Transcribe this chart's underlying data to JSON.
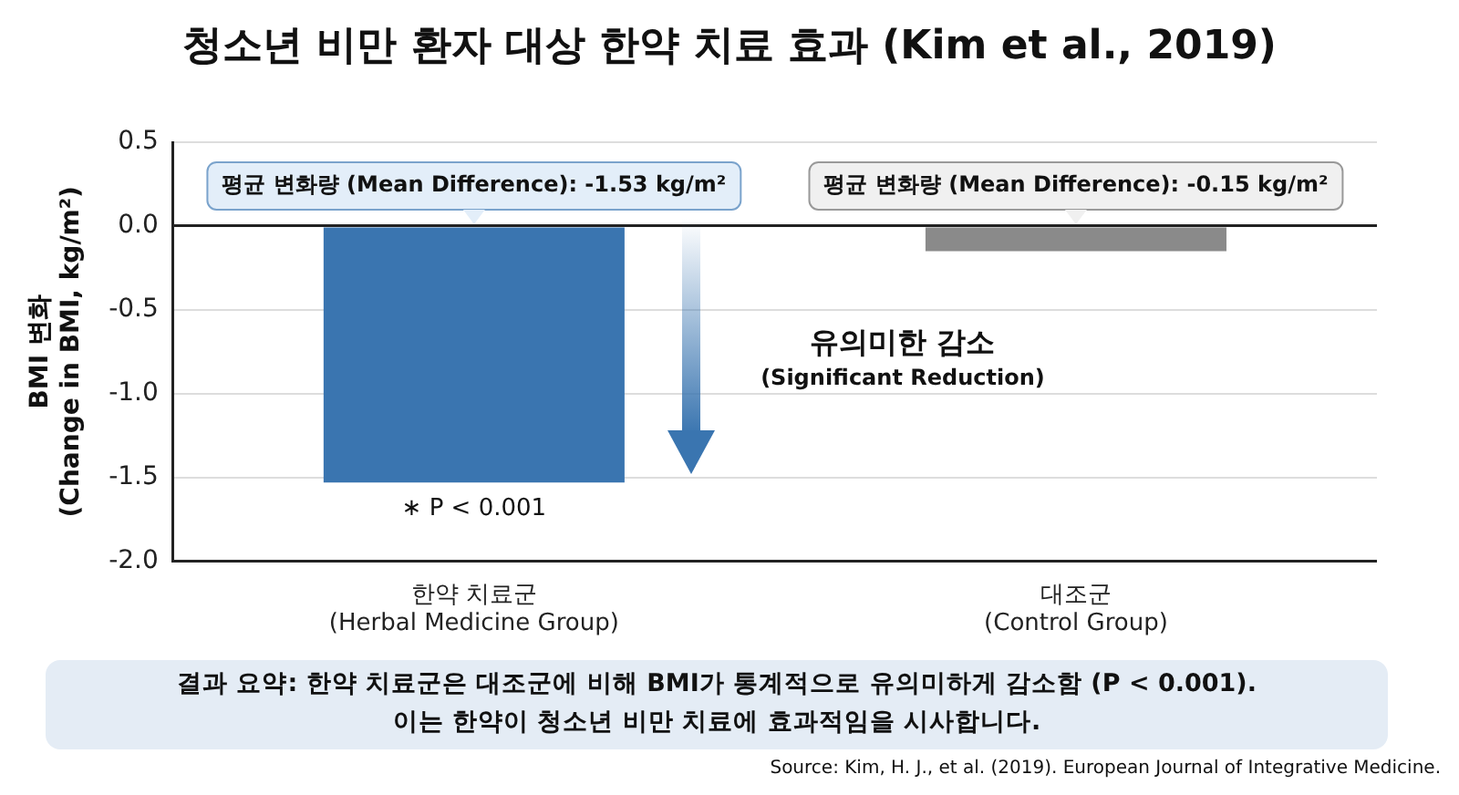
{
  "chart_data": {
    "type": "bar",
    "title": "청소년 비만 환자 대상 한약 치료 효과 (Kim et al., 2019)",
    "ylabel": "BMI 변화\n(Change in BMI, kg/m²)",
    "categories": [
      "한약 치료군\n(Herbal Medicine Group)",
      "대조군\n(Control Group)"
    ],
    "values": [
      -1.53,
      -0.15
    ],
    "colors": [
      "#3a75b0",
      "#8a8a8a"
    ],
    "ylim": [
      -2.0,
      0.5
    ],
    "yticks": [
      {
        "value": 0.5,
        "label": "0.5"
      },
      {
        "value": 0,
        "label": "0.0"
      },
      {
        "value": -0.5,
        "label": "-0.5"
      },
      {
        "value": -1,
        "label": "-1.0"
      },
      {
        "value": -1.5,
        "label": "-1.5"
      },
      {
        "value": -2,
        "label": "-2.0"
      }
    ],
    "grid": "y",
    "legend": false,
    "annotations": [
      {
        "text": "평균 변화량 (Mean Difference): -1.53 kg/m²",
        "x": "한약 치료군\n(Herbal Medicine Group)",
        "y": 0
      },
      {
        "text": "평균 변화량 (Mean Difference): -0.15 kg/m²",
        "x": "대조군\n(Control Group)",
        "y": 0
      },
      {
        "text": "∗ P < 0.001",
        "x": "한약 치료군\n(Herbal Medicine Group)",
        "y": -1.53
      },
      "유의미한 감소\n(Significant Reduction)",
      "결과 요약: 한약 치료군은 대조군에 비해 BMI가 통계적으로 유의미하게 감소함 (P < 0.001).\n이는 한약이 청소년 비만 치료에 효과적임을 시사합니다.",
      "Source: Kim, H. J., et al. (2019). European Journal of Integrative Medicine."
    ]
  }
}
